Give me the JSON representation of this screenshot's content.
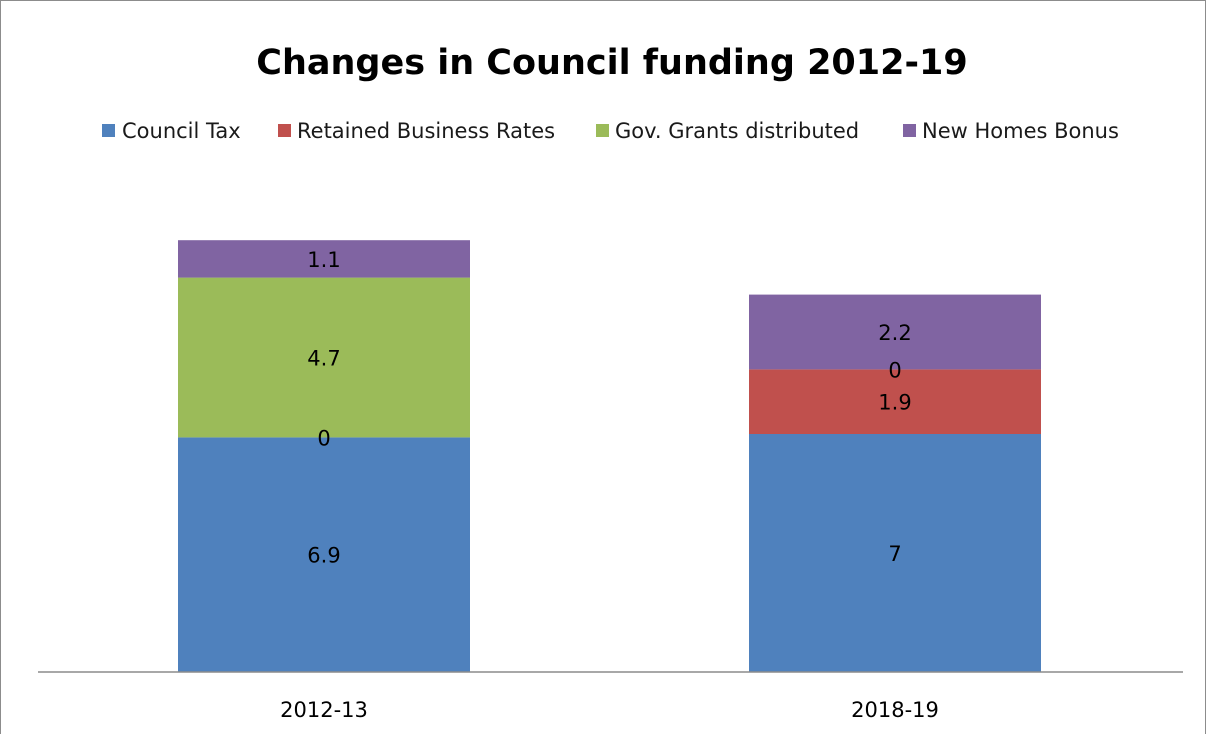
{
  "chart_data": {
    "type": "bar",
    "stacked": true,
    "title": "Changes in Council funding 2012-19",
    "xlabel": "",
    "ylabel": "",
    "categories": [
      "2012-13",
      "2018-19"
    ],
    "series": [
      {
        "name": "Council Tax",
        "color": "#4F81BD",
        "values": [
          6.9,
          7
        ]
      },
      {
        "name": "Retained Business Rates",
        "color": "#C0504D",
        "values": [
          0,
          1.9
        ]
      },
      {
        "name": "Gov. Grants distributed",
        "color": "#9BBB59",
        "values": [
          4.7,
          0
        ]
      },
      {
        "name": "New Homes Bonus",
        "color": "#8064A2",
        "values": [
          1.1,
          2.2
        ]
      }
    ],
    "data_labels": [
      [
        "6.9",
        "7"
      ],
      [
        "0",
        "1.9"
      ],
      [
        "4.7",
        "0"
      ],
      [
        "1.1",
        "2.2"
      ]
    ],
    "ylim": [
      0,
      13
    ],
    "grid": false,
    "legend_position": "top"
  }
}
